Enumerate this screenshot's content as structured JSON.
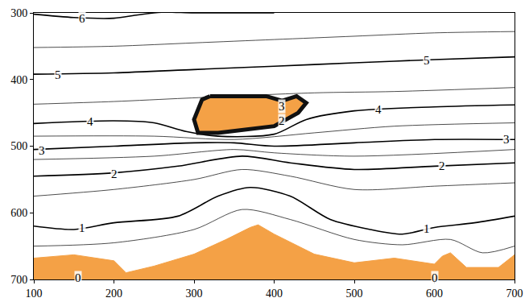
{
  "chart_data": {
    "type": "contour",
    "xlim": [
      100,
      700
    ],
    "ylim": [
      700,
      300
    ],
    "xticks": [
      100,
      200,
      300,
      400,
      500,
      600,
      700
    ],
    "yticks": [
      300,
      400,
      500,
      600,
      700
    ],
    "color": "#f4a146",
    "grid": false,
    "contours": [
      {
        "level": 6,
        "x": [
          100,
          150,
          200,
          230,
          260,
          300,
          400
        ],
        "y": [
          302,
          307,
          308,
          303,
          299,
          300,
          300
        ]
      },
      {
        "level": 5.5,
        "x": [
          100,
          200,
          300,
          400,
          500,
          600,
          700
        ],
        "y": [
          352,
          350,
          345,
          340,
          335,
          330,
          328
        ]
      },
      {
        "level": 5,
        "x": [
          100,
          200,
          300,
          400,
          500,
          600,
          700
        ],
        "y": [
          392,
          390,
          385,
          380,
          375,
          370,
          366
        ]
      },
      {
        "level": 4.5,
        "x": [
          100,
          200,
          290,
          450,
          550,
          700
        ],
        "y": [
          437,
          433,
          428,
          420,
          418,
          412
        ]
      },
      {
        "level": 4,
        "x": [
          100,
          200,
          250,
          290,
          330,
          400,
          440,
          500,
          600,
          700
        ],
        "y": [
          466,
          462,
          465,
          478,
          485,
          482,
          460,
          447,
          441,
          438
        ]
      },
      {
        "level": 3.5,
        "x": [
          100,
          250,
          350,
          450,
          550,
          700
        ],
        "y": [
          485,
          485,
          490,
          480,
          470,
          465
        ]
      },
      {
        "level": 3,
        "x": [
          100,
          200,
          300,
          350,
          400,
          500,
          600,
          700
        ],
        "y": [
          505,
          500,
          495,
          495,
          500,
          495,
          490,
          490
        ]
      },
      {
        "level": 2.5,
        "x": [
          100,
          250,
          350,
          400,
          500,
          700
        ],
        "y": [
          520,
          515,
          505,
          510,
          515,
          505
        ]
      },
      {
        "level": 2,
        "x": [
          100,
          200,
          280,
          360,
          420,
          500,
          600,
          700
        ],
        "y": [
          545,
          540,
          530,
          515,
          525,
          535,
          530,
          525
        ]
      },
      {
        "level": 1.5,
        "x": [
          100,
          200,
          300,
          360,
          420,
          500,
          600,
          700
        ],
        "y": [
          575,
          565,
          550,
          535,
          545,
          565,
          560,
          555
        ]
      },
      {
        "level": 1,
        "x": [
          100,
          150,
          200,
          280,
          330,
          370,
          420,
          470,
          520,
          560,
          600,
          650,
          700
        ],
        "y": [
          620,
          625,
          615,
          605,
          575,
          562,
          575,
          610,
          625,
          632,
          622,
          615,
          605
        ]
      },
      {
        "level": 0.5,
        "x": [
          100,
          200,
          300,
          360,
          420,
          500,
          560,
          620,
          660,
          700
        ],
        "y": [
          650,
          645,
          625,
          595,
          610,
          640,
          648,
          640,
          660,
          650
        ]
      }
    ],
    "contour_labels": [
      {
        "level": 6,
        "x": 160,
        "y": 309
      },
      {
        "level": 5,
        "x": 130,
        "y": 393
      },
      {
        "level": 5,
        "x": 590,
        "y": 371
      },
      {
        "level": 4,
        "x": 170,
        "y": 463
      },
      {
        "level": 4,
        "x": 530,
        "y": 445
      },
      {
        "level": 3,
        "x": 110,
        "y": 507
      },
      {
        "level": 3,
        "x": 690,
        "y": 490
      },
      {
        "level": 3,
        "x": 410,
        "y": 440
      },
      {
        "level": 2,
        "x": 410,
        "y": 462
      },
      {
        "level": 2,
        "x": 200,
        "y": 542
      },
      {
        "level": 2,
        "x": 610,
        "y": 530
      },
      {
        "level": 1,
        "x": 160,
        "y": 623
      },
      {
        "level": 1,
        "x": 590,
        "y": 624
      },
      {
        "level": 0,
        "x": 155,
        "y": 697
      },
      {
        "level": 0,
        "x": 600,
        "y": 697
      }
    ],
    "bodies": [
      {
        "x": [
          320,
          340,
          390,
          410,
          428,
          440,
          430,
          400,
          330,
          305,
          300,
          310,
          320
        ],
        "y": [
          425,
          425,
          425,
          432,
          425,
          435,
          450,
          470,
          480,
          480,
          460,
          430,
          425
        ]
      }
    ],
    "terrain": {
      "x": [
        100,
        150,
        200,
        215,
        250,
        300,
        340,
        370,
        380,
        400,
        450,
        500,
        550,
        600,
        610,
        620,
        640,
        680,
        700
      ],
      "y": [
        668,
        663,
        672,
        690,
        680,
        662,
        640,
        622,
        618,
        632,
        662,
        675,
        668,
        677,
        665,
        660,
        682,
        682,
        663
      ]
    }
  }
}
